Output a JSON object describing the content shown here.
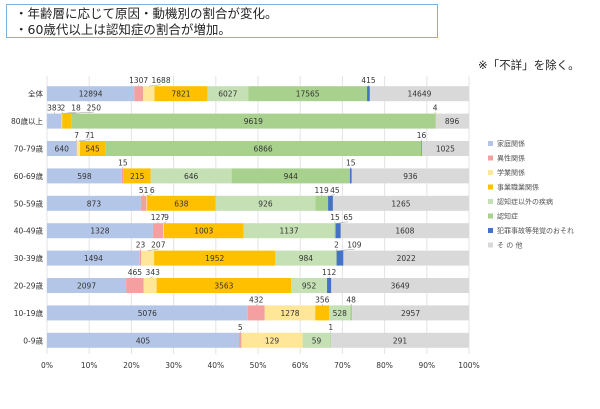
{
  "notes": [
    "・年齢層に応じて原因・動機別の割合が変化。",
    "・60歳代以上は認知症の割合が増加。"
  ],
  "footnote": "※「不詳」を除く。",
  "chart_data": {
    "type": "bar",
    "orientation": "horizontal",
    "stacked": "percent",
    "categories": [
      "全体",
      "80歳以上",
      "70-79歳",
      "60-69歳",
      "50-59歳",
      "40-49歳",
      "30-39歳",
      "20-29歳",
      "10-19歳",
      "0-9歳"
    ],
    "series": [
      {
        "name": "家庭関係",
        "color": "#b4c6e7",
        "values": [
          12894,
          383,
          640,
          598,
          873,
          1328,
          1494,
          2097,
          5076,
          405
        ]
      },
      {
        "name": "異性関係",
        "color": "#f4a0a0",
        "values": [
          1307,
          2,
          7,
          15,
          51,
          127,
          23,
          465,
          432,
          5
        ]
      },
      {
        "name": "学業関係",
        "color": "#ffe699",
        "values": [
          1688,
          18,
          71,
          0,
          6,
          9,
          207,
          343,
          1278,
          129
        ]
      },
      {
        "name": "事業職業関係",
        "color": "#ffc000",
        "values": [
          7821,
          250,
          545,
          215,
          638,
          1003,
          1952,
          3563,
          356,
          0
        ]
      },
      {
        "name": "認知症以外の疾病",
        "color": "#c5e0b4",
        "values": [
          6027,
          0,
          0,
          646,
          926,
          1137,
          984,
          952,
          528,
          59
        ]
      },
      {
        "name": "認知症",
        "color": "#a9d18e",
        "values": [
          17565,
          9619,
          6866,
          944,
          119,
          15,
          2,
          0,
          48,
          1
        ]
      },
      {
        "name": "犯罪事故等発覚のおそれ",
        "color": "#4472c4",
        "values": [
          415,
          4,
          16,
          15,
          45,
          65,
          109,
          112,
          0,
          0
        ]
      },
      {
        "name": "そ の 他",
        "color": "#d9d9d9",
        "values": [
          14649,
          896,
          1025,
          936,
          1265,
          1608,
          2022,
          3649,
          2957,
          291
        ]
      }
    ],
    "labels": [
      [
        "12894",
        "1307",
        "1688",
        "7821",
        "6027",
        "17565",
        "415",
        "14649"
      ],
      [
        "383",
        "2",
        "18",
        "250",
        "",
        "9619",
        "4",
        "896"
      ],
      [
        "640",
        "7",
        "71",
        "545",
        "",
        "6866",
        "16",
        "1025"
      ],
      [
        "598",
        "15",
        "",
        "215",
        "646",
        "944",
        "15",
        "936"
      ],
      [
        "873",
        "51",
        "6",
        "638",
        "926",
        "119",
        "45",
        "1265"
      ],
      [
        "1328",
        "127",
        "9",
        "1003",
        "1137",
        "15",
        "65",
        "1608"
      ],
      [
        "1494",
        "23",
        "207",
        "1952",
        "984",
        "2",
        "109",
        "2022"
      ],
      [
        "2097",
        "465",
        "343",
        "3563",
        "952",
        "",
        "112",
        "3649"
      ],
      [
        "5076",
        "432",
        "1278",
        "356",
        "528",
        "48",
        "",
        "2957"
      ],
      [
        "405",
        "5",
        "129",
        "",
        "59",
        "1",
        "",
        "291"
      ]
    ],
    "xlim": [
      0,
      100
    ],
    "xticks": [
      "0%",
      "10%",
      "20%",
      "30%",
      "40%",
      "50%",
      "60%",
      "70%",
      "80%",
      "90%",
      "100%"
    ],
    "legend_position": "right",
    "grid": true
  }
}
